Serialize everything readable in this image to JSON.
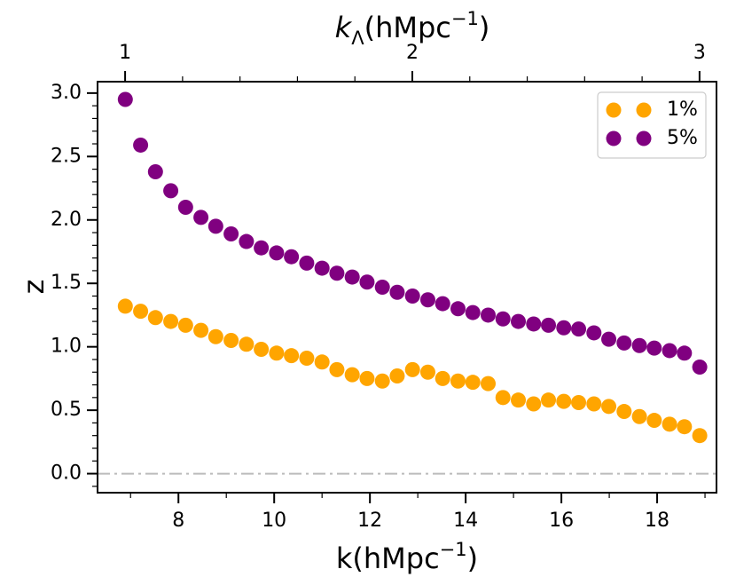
{
  "chart_data": {
    "type": "scatter",
    "xlabel": [
      "k(hMpc",
      "−1",
      ")"
    ],
    "x2label": [
      "k",
      "Λ",
      "(hMpc",
      "−1",
      ")"
    ],
    "ylabel": "z",
    "x": [
      6.89,
      7.21,
      7.52,
      7.84,
      8.15,
      8.47,
      8.78,
      9.1,
      9.42,
      9.73,
      10.05,
      10.36,
      10.68,
      11.0,
      11.31,
      11.63,
      11.94,
      12.26,
      12.57,
      12.89,
      13.21,
      13.52,
      13.84,
      14.15,
      14.47,
      14.78,
      15.1,
      15.42,
      15.73,
      16.05,
      16.36,
      16.68,
      16.99,
      17.31,
      17.63,
      17.94,
      18.26,
      18.57,
      18.89
    ],
    "series": [
      {
        "name": "1%",
        "color": "#ffa500",
        "values": [
          1.32,
          1.28,
          1.23,
          1.2,
          1.17,
          1.13,
          1.08,
          1.05,
          1.02,
          0.98,
          0.95,
          0.93,
          0.91,
          0.88,
          0.82,
          0.78,
          0.75,
          0.73,
          0.77,
          0.82,
          0.8,
          0.75,
          0.73,
          0.72,
          0.71,
          0.6,
          0.58,
          0.55,
          0.58,
          0.57,
          0.56,
          0.55,
          0.53,
          0.49,
          0.45,
          0.42,
          0.39,
          0.37,
          0.3
        ]
      },
      {
        "name": "5%",
        "color": "#800080",
        "values": [
          2.95,
          2.59,
          2.38,
          2.23,
          2.1,
          2.02,
          1.95,
          1.89,
          1.83,
          1.78,
          1.74,
          1.71,
          1.66,
          1.62,
          1.58,
          1.55,
          1.51,
          1.47,
          1.43,
          1.4,
          1.37,
          1.34,
          1.3,
          1.27,
          1.25,
          1.22,
          1.2,
          1.18,
          1.17,
          1.15,
          1.14,
          1.11,
          1.06,
          1.03,
          1.01,
          0.99,
          0.97,
          0.95,
          0.84
        ]
      }
    ],
    "xlim": [
      6.31,
      19.24
    ],
    "xticks": [
      8,
      10,
      12,
      14,
      16,
      18
    ],
    "x2lim": [
      0.904,
      3.059
    ],
    "x2ticks": [
      1,
      2,
      3
    ],
    "ylim": [
      -0.15,
      3.09
    ],
    "yticks": [
      {
        "value": 0,
        "label": "0.0"
      },
      {
        "value": 0.5,
        "label": "0.5"
      },
      {
        "value": 1,
        "label": "1.0"
      },
      {
        "value": 1.5,
        "label": "1.5"
      },
      {
        "value": 2,
        "label": "2.0"
      },
      {
        "value": 2.5,
        "label": "2.5"
      },
      {
        "value": 3,
        "label": "3.0"
      }
    ],
    "hline": 0,
    "legend": "upper right"
  }
}
